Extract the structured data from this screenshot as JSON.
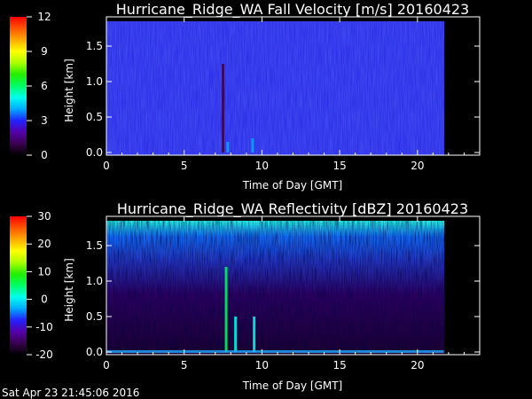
{
  "footer_timestamp": "Sat Apr 23 21:45:06 2016",
  "colors": {
    "background": "#000000",
    "axis": "#ffffff",
    "colorbar_stops": [
      "#000000",
      "#3a0050",
      "#5500aa",
      "#2222ff",
      "#00aaff",
      "#00ffee",
      "#00ff66",
      "#22ee00",
      "#aaff00",
      "#ffff00",
      "#ffaa00",
      "#ff5500",
      "#ff0000"
    ]
  },
  "chart_data": [
    {
      "type": "heatmap",
      "title": "Hurricane_Ridge_WA Fall Velocity [m/s] 20160423",
      "xlabel": "Time of Day [GMT]",
      "ylabel": "Height [km]",
      "xlim": [
        0,
        24
      ],
      "ylim": [
        0,
        1.85
      ],
      "x_ticks": [
        "0",
        "5",
        "10",
        "15",
        "20"
      ],
      "y_ticks": [
        "0.0",
        "0.5",
        "1.0",
        "1.5"
      ],
      "data_end_time": 21.7,
      "colorbar_range": [
        0,
        12
      ],
      "colorbar_ticks": [
        "0",
        "3",
        "6",
        "9",
        "12"
      ],
      "base_color": "#2222ee",
      "features": [
        {
          "time": 7.8,
          "height_top": 0.15,
          "value": 3.5
        },
        {
          "time": 9.4,
          "height_top": 0.2,
          "value": 3.5
        },
        {
          "time": 7.5,
          "height_top": 1.25,
          "value": 1.0
        }
      ]
    },
    {
      "type": "heatmap",
      "title": "Hurricane_Ridge_WA Reflectivity [dBZ] 20160423",
      "xlabel": "Time of Day [GMT]",
      "ylabel": "Height [km]",
      "xlim": [
        0,
        24
      ],
      "ylim": [
        0,
        1.85
      ],
      "x_ticks": [
        "0",
        "5",
        "10",
        "15",
        "20"
      ],
      "y_ticks": [
        "0.0",
        "0.5",
        "1.0",
        "1.5"
      ],
      "data_end_time": 21.7,
      "colorbar_range": [
        -20,
        30
      ],
      "colorbar_ticks": [
        "-20",
        "-10",
        "0",
        "10",
        "20",
        "30"
      ],
      "features": [
        {
          "time": 7.7,
          "height_top": 1.2,
          "value": 5
        },
        {
          "time": 8.3,
          "height_top": 0.5,
          "value": 0
        },
        {
          "time": 9.5,
          "height_top": 0.5,
          "value": 0
        }
      ]
    }
  ]
}
